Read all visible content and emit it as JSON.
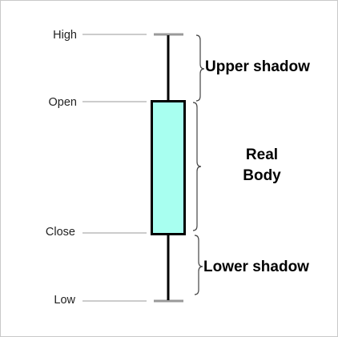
{
  "diagram": {
    "price_labels": {
      "high": "High",
      "open": "Open",
      "close": "Close",
      "low": "Low"
    },
    "section_labels": {
      "upper_shadow": "Upper shadow",
      "real_body_line1": "Real",
      "real_body_line2": "Body",
      "lower_shadow": "Lower shadow"
    },
    "colors": {
      "body_fill": "#a8fff0",
      "wick": "#000000",
      "guide_line": "#999999",
      "tick": "#999999",
      "brace": "#444444"
    }
  }
}
